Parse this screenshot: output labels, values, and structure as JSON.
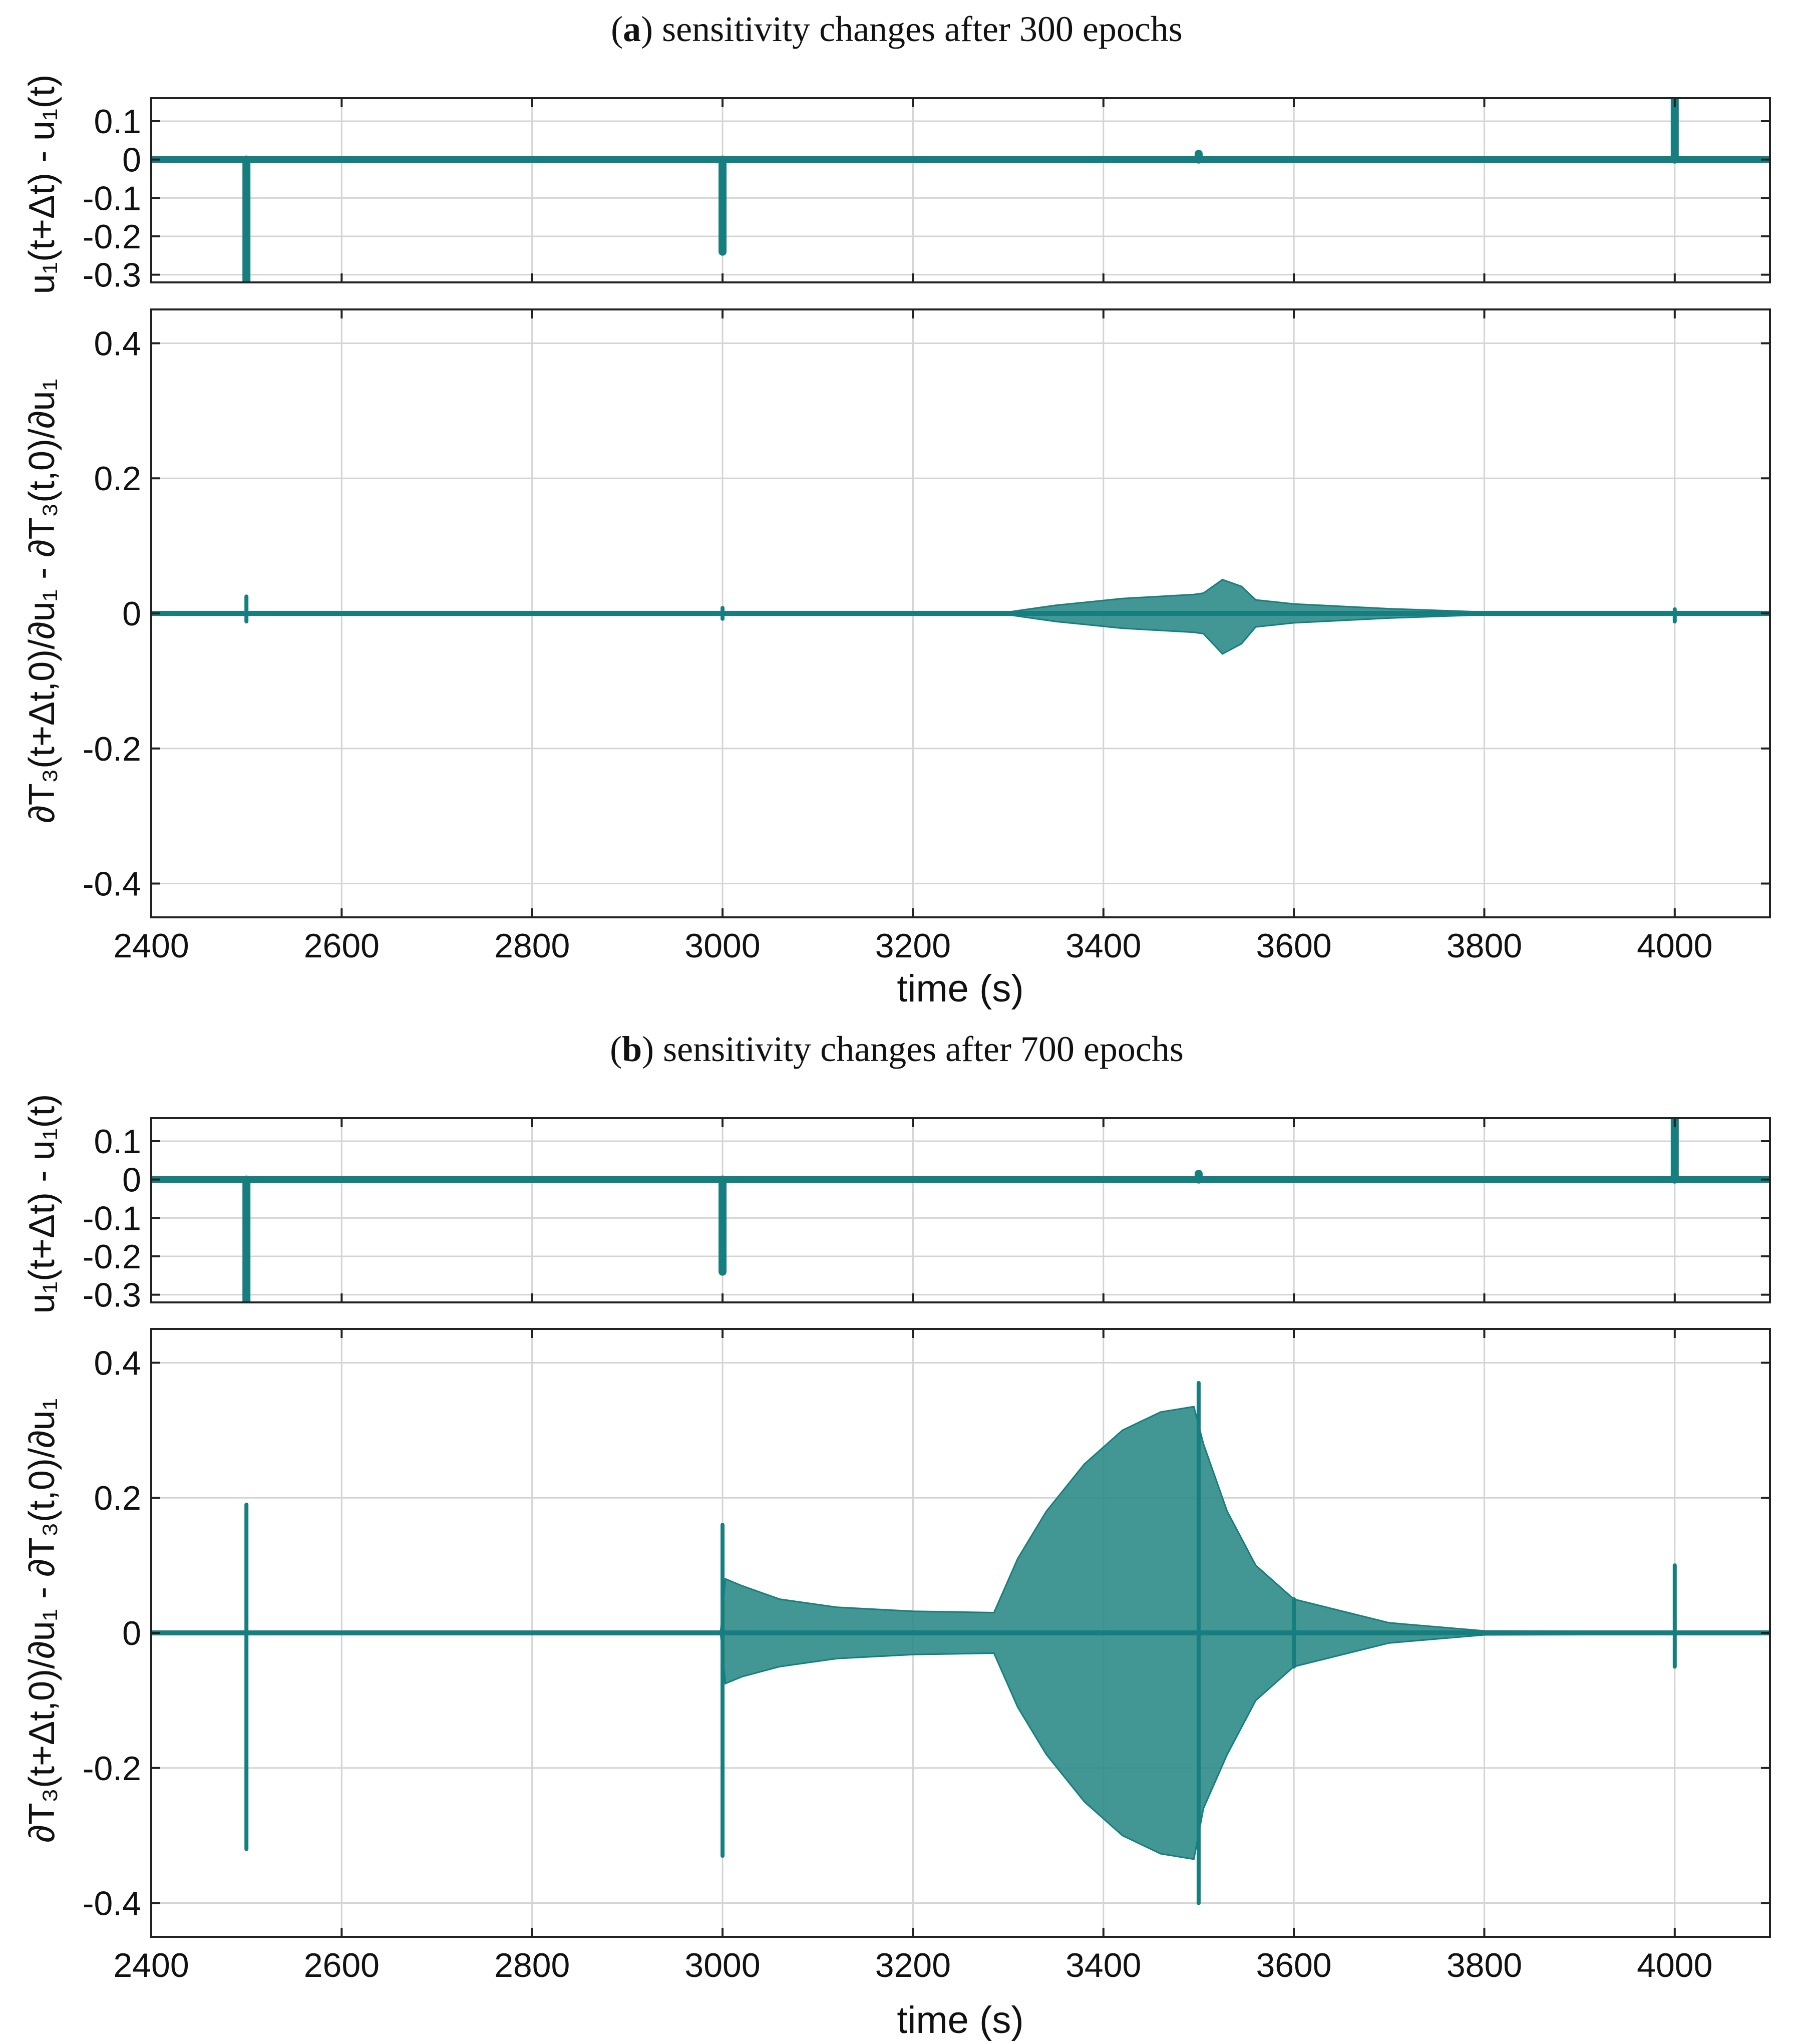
{
  "figure": {
    "series_color": "#167E7E",
    "envelope_color": "#2E8B87",
    "panels": [
      {
        "title_prefix": "(",
        "title_letter": "a",
        "title_rest": ") sensitivity changes after 300 epochs",
        "xlabel": "time (s)",
        "ylabel_top": "u₁(t+Δt)  -  u₁(t)",
        "ylabel_bottom": "∂T₃(t+Δt,0)/∂u₁  -  ∂T₃(t,0)/∂u₁"
      },
      {
        "title_prefix": "(",
        "title_letter": "b",
        "title_rest": ") sensitivity changes after 700 epochs",
        "xlabel": "time (s)",
        "ylabel_top": "u₁(t+Δt)  -  u₁(t)",
        "ylabel_bottom": "∂T₃(t+Δt,0)/∂u₁  -  ∂T₃(t,0)/∂u₁"
      }
    ]
  },
  "chart_data": [
    {
      "type": "line",
      "panel": "a-top",
      "xlim": [
        2400,
        4100
      ],
      "ylim": [
        -0.32,
        0.16
      ],
      "xticks": [
        2400,
        2600,
        2800,
        3000,
        3200,
        3400,
        3600,
        3800,
        4000
      ],
      "yticks": [
        0.1,
        0,
        -0.1,
        -0.2,
        -0.3
      ],
      "ytick_labels": [
        "0.1",
        "0",
        "-0.1",
        "-0.2",
        "-0.3"
      ],
      "grid": true,
      "baseline": 0,
      "spikes": [
        {
          "x": 2500,
          "y": -0.33
        },
        {
          "x": 3000,
          "y": -0.24
        },
        {
          "x": 3500,
          "y": 0.015
        },
        {
          "x": 4000,
          "y": 0.16
        }
      ]
    },
    {
      "type": "area",
      "panel": "a-bottom",
      "xlim": [
        2400,
        4100
      ],
      "ylim": [
        -0.45,
        0.45
      ],
      "xticks": [
        2400,
        2600,
        2800,
        3000,
        3200,
        3400,
        3600,
        3800,
        4000
      ],
      "xtick_labels": [
        "2400",
        "2600",
        "2800",
        "3000",
        "3200",
        "3400",
        "3600",
        "3800",
        "4000"
      ],
      "yticks": [
        0.4,
        0.2,
        0,
        -0.2,
        -0.4
      ],
      "ytick_labels": [
        "0.4",
        "0.2",
        "0",
        "-0.2",
        "-0.4"
      ],
      "grid": true,
      "envelope": [
        {
          "x": 2400,
          "upper": 0.002,
          "lower": -0.002
        },
        {
          "x": 3300,
          "upper": 0.002,
          "lower": -0.002
        },
        {
          "x": 3350,
          "upper": 0.012,
          "lower": -0.012
        },
        {
          "x": 3420,
          "upper": 0.022,
          "lower": -0.022
        },
        {
          "x": 3495,
          "upper": 0.028,
          "lower": -0.028
        },
        {
          "x": 3505,
          "upper": 0.03,
          "lower": -0.03
        },
        {
          "x": 3525,
          "upper": 0.05,
          "lower": -0.06
        },
        {
          "x": 3545,
          "upper": 0.04,
          "lower": -0.045
        },
        {
          "x": 3560,
          "upper": 0.02,
          "lower": -0.02
        },
        {
          "x": 3600,
          "upper": 0.014,
          "lower": -0.014
        },
        {
          "x": 3700,
          "upper": 0.007,
          "lower": -0.007
        },
        {
          "x": 3800,
          "upper": 0.002,
          "lower": -0.002
        },
        {
          "x": 4100,
          "upper": 0.002,
          "lower": -0.002
        }
      ],
      "spikes": [
        {
          "x": 2500,
          "upper": 0.025,
          "lower": -0.012
        },
        {
          "x": 3000,
          "upper": 0.008,
          "lower": -0.008
        },
        {
          "x": 4000,
          "upper": 0.006,
          "lower": -0.012
        }
      ]
    },
    {
      "type": "line",
      "panel": "b-top",
      "xlim": [
        2400,
        4100
      ],
      "ylim": [
        -0.32,
        0.16
      ],
      "xticks": [
        2400,
        2600,
        2800,
        3000,
        3200,
        3400,
        3600,
        3800,
        4000
      ],
      "yticks": [
        0.1,
        0,
        -0.1,
        -0.2,
        -0.3
      ],
      "ytick_labels": [
        "0.1",
        "0",
        "-0.1",
        "-0.2",
        "-0.3"
      ],
      "grid": true,
      "baseline": 0,
      "spikes": [
        {
          "x": 2500,
          "y": -0.33
        },
        {
          "x": 3000,
          "y": -0.24
        },
        {
          "x": 3500,
          "y": 0.015
        },
        {
          "x": 4000,
          "y": 0.16
        }
      ]
    },
    {
      "type": "area",
      "panel": "b-bottom",
      "xlim": [
        2400,
        4100
      ],
      "ylim": [
        -0.45,
        0.45
      ],
      "xticks": [
        2400,
        2600,
        2800,
        3000,
        3200,
        3400,
        3600,
        3800,
        4000
      ],
      "xtick_labels": [
        "2400",
        "2600",
        "2800",
        "3000",
        "3200",
        "3400",
        "3600",
        "3800",
        "4000"
      ],
      "yticks": [
        0.4,
        0.2,
        0,
        -0.2,
        -0.4
      ],
      "ytick_labels": [
        "0.4",
        "0.2",
        "0",
        "-0.2",
        "-0.4"
      ],
      "grid": true,
      "envelope": [
        {
          "x": 2400,
          "upper": 0.002,
          "lower": -0.002
        },
        {
          "x": 2998,
          "upper": 0.002,
          "lower": -0.002
        },
        {
          "x": 3003,
          "upper": 0.08,
          "lower": -0.075
        },
        {
          "x": 3020,
          "upper": 0.07,
          "lower": -0.065
        },
        {
          "x": 3060,
          "upper": 0.05,
          "lower": -0.05
        },
        {
          "x": 3120,
          "upper": 0.038,
          "lower": -0.038
        },
        {
          "x": 3200,
          "upper": 0.032,
          "lower": -0.032
        },
        {
          "x": 3285,
          "upper": 0.03,
          "lower": -0.03
        },
        {
          "x": 3310,
          "upper": 0.11,
          "lower": -0.11
        },
        {
          "x": 3340,
          "upper": 0.18,
          "lower": -0.18
        },
        {
          "x": 3380,
          "upper": 0.25,
          "lower": -0.25
        },
        {
          "x": 3420,
          "upper": 0.3,
          "lower": -0.3
        },
        {
          "x": 3460,
          "upper": 0.327,
          "lower": -0.327
        },
        {
          "x": 3495,
          "upper": 0.335,
          "lower": -0.335
        },
        {
          "x": 3505,
          "upper": 0.28,
          "lower": -0.26
        },
        {
          "x": 3530,
          "upper": 0.18,
          "lower": -0.18
        },
        {
          "x": 3560,
          "upper": 0.1,
          "lower": -0.1
        },
        {
          "x": 3600,
          "upper": 0.05,
          "lower": -0.05
        },
        {
          "x": 3700,
          "upper": 0.015,
          "lower": -0.015
        },
        {
          "x": 3800,
          "upper": 0.003,
          "lower": -0.003
        },
        {
          "x": 4100,
          "upper": 0.002,
          "lower": -0.002
        }
      ],
      "spikes": [
        {
          "x": 2500,
          "upper": 0.19,
          "lower": -0.32
        },
        {
          "x": 3000,
          "upper": 0.16,
          "lower": -0.33
        },
        {
          "x": 3500,
          "upper": 0.37,
          "lower": -0.4
        },
        {
          "x": 3600,
          "upper": 0.05,
          "lower": -0.05
        },
        {
          "x": 4000,
          "upper": 0.1,
          "lower": -0.05
        }
      ]
    }
  ]
}
